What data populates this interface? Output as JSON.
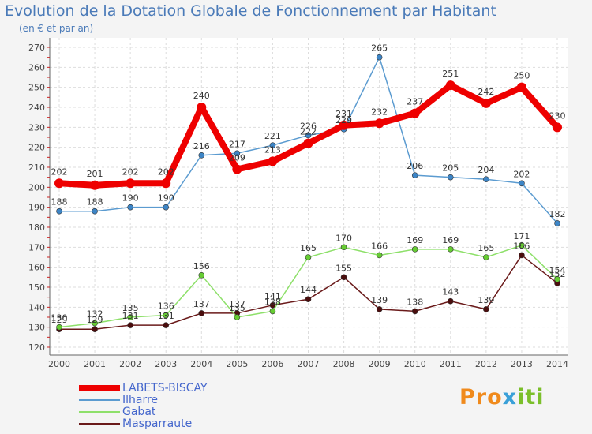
{
  "chart_data": {
    "type": "line",
    "title": "Evolution de la Dotation Globale de Fonctionnement par Habitant",
    "subtitle": "(en € et par an)",
    "xlabel": "",
    "ylabel": "",
    "x": [
      "2000",
      "2001",
      "2002",
      "2003",
      "2004",
      "2005",
      "2006",
      "2007",
      "2008",
      "2009",
      "2010",
      "2011",
      "2012",
      "2013",
      "2014"
    ],
    "ylim": [
      120,
      270
    ],
    "yticks": [
      120,
      130,
      140,
      150,
      160,
      170,
      180,
      190,
      200,
      210,
      220,
      230,
      240,
      250,
      260,
      270
    ],
    "grid": true,
    "legend_position": "bottom-left",
    "series": [
      {
        "name": "LABETS-BISCAY",
        "color": "#ee0000",
        "values": [
          202,
          201,
          202,
          202,
          240,
          209,
          213,
          222,
          231,
          232,
          237,
          251,
          242,
          250,
          230
        ]
      },
      {
        "name": "Ilharre",
        "color": "#5b9bd0",
        "values": [
          188,
          188,
          190,
          190,
          216,
          217,
          221,
          226,
          229,
          265,
          206,
          205,
          204,
          202,
          182
        ]
      },
      {
        "name": "Gabat",
        "color": "#8ee06a",
        "values": [
          130,
          132,
          135,
          136,
          156,
          135,
          138,
          165,
          170,
          166,
          169,
          169,
          165,
          171,
          154
        ]
      },
      {
        "name": "Masparraute",
        "color": "#6a1a1a",
        "values": [
          129,
          129,
          131,
          131,
          137,
          137,
          141,
          144,
          155,
          139,
          138,
          143,
          139,
          166,
          152
        ]
      }
    ]
  },
  "logo": {
    "part1": "Pro",
    "part2": "x",
    "part3": "iti"
  }
}
